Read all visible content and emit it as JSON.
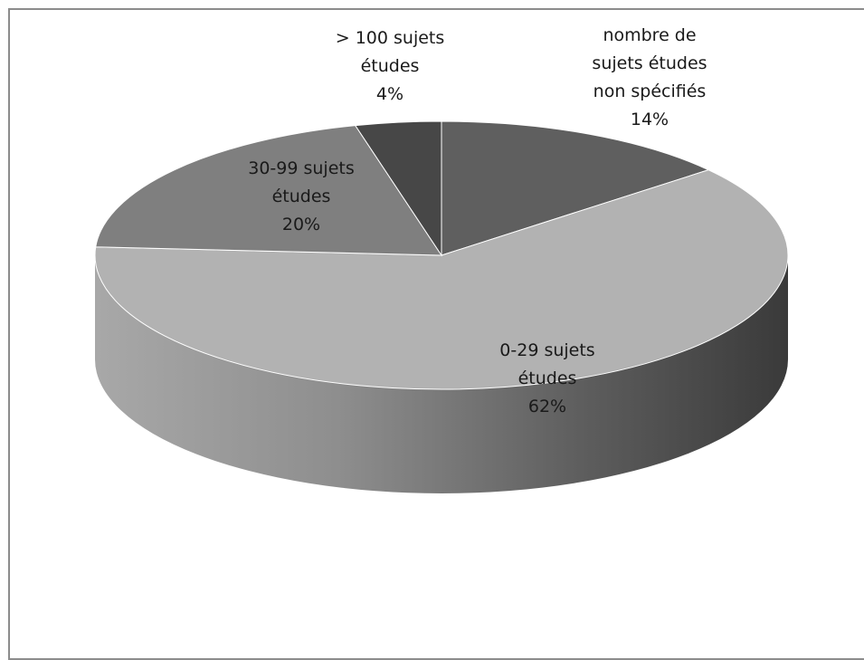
{
  "chart_data": {
    "type": "pie",
    "style": "3d",
    "legend": "none",
    "slices": [
      {
        "name": "nombre de sujets études non spécifiés",
        "lines": [
          "nombre de",
          "sujets études",
          "non spécifiés"
        ],
        "pct_label": "14%",
        "value": 14,
        "color": "#5f5f5f"
      },
      {
        "name": "0-29 sujets études",
        "lines": [
          "0-29 sujets",
          "études"
        ],
        "pct_label": "62%",
        "value": 62,
        "color": "#b2b2b2"
      },
      {
        "name": "30-99 sujets études",
        "lines": [
          "30-99 sujets",
          "études"
        ],
        "pct_label": "20%",
        "value": 20,
        "color": "#7f7f7f"
      },
      {
        "name": "> 100 sujets études",
        "lines": [
          "> 100 sujets",
          "études"
        ],
        "pct_label": "4%",
        "value": 4,
        "color": "#474747"
      }
    ]
  }
}
